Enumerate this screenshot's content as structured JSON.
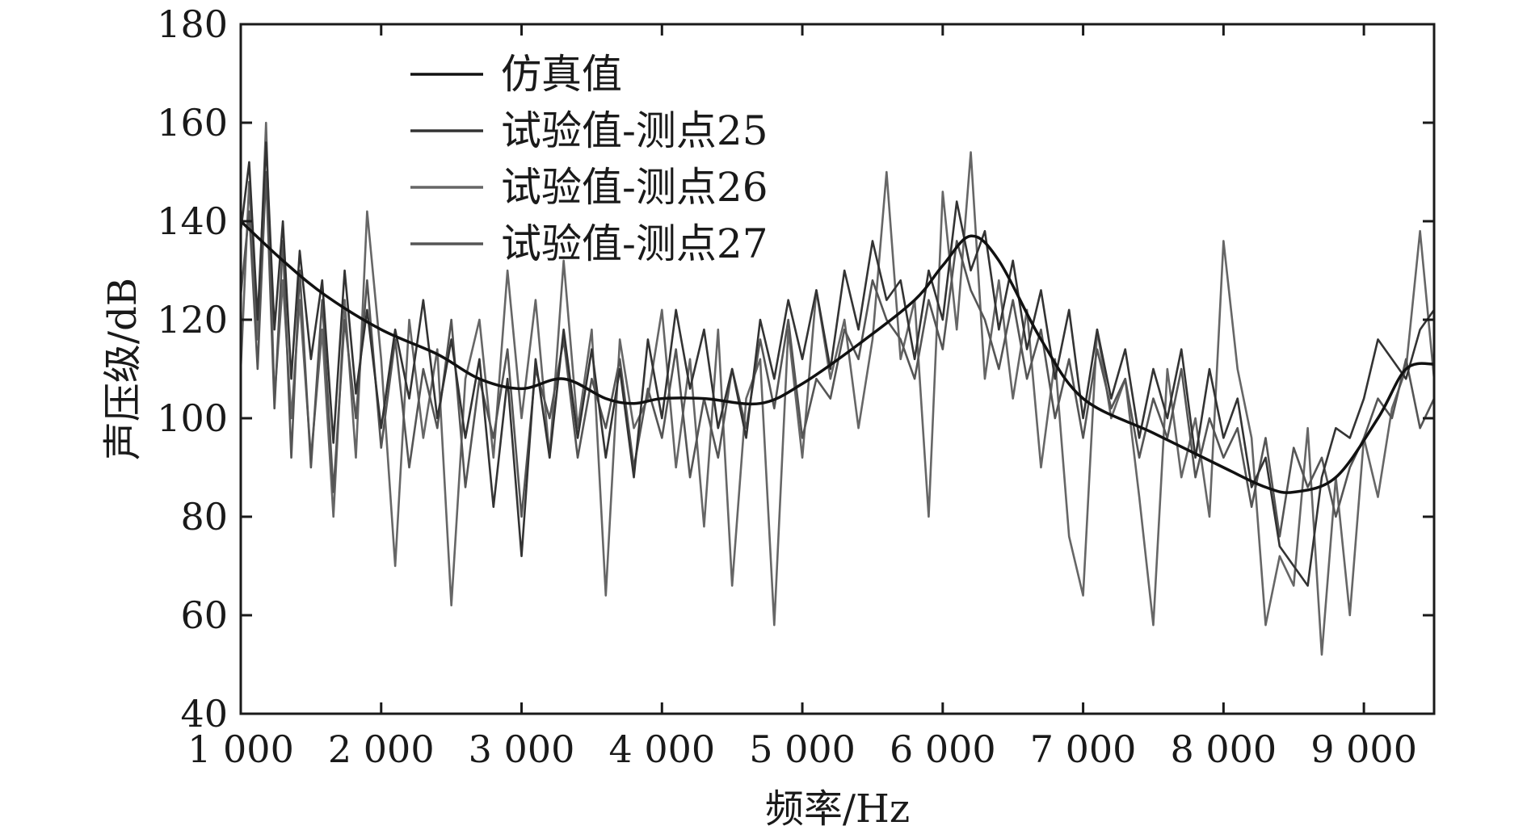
{
  "chart_data": {
    "type": "line",
    "title": "",
    "xlabel": "频率/Hz",
    "ylabel": "声压级/dB",
    "xlim": [
      1000,
      9500
    ],
    "ylim": [
      40,
      180
    ],
    "x_ticks": [
      1000,
      2000,
      3000,
      4000,
      5000,
      6000,
      7000,
      8000,
      9000
    ],
    "x_tick_labels": [
      "1 000",
      "2 000",
      "3 000",
      "4 000",
      "5 000",
      "6 000",
      "7 000",
      "8 000",
      "9 000"
    ],
    "y_ticks": [
      40,
      60,
      80,
      100,
      120,
      140,
      160,
      180
    ],
    "y_tick_labels": [
      "40",
      "60",
      "80",
      "100",
      "120",
      "140",
      "160",
      "180"
    ],
    "grid": false,
    "legend_position": "top-left",
    "colors": {
      "sim": "#111111",
      "p25": "#333333",
      "p26": "#666666",
      "p27": "#555555",
      "axis": "#1a1a1a"
    },
    "series": [
      {
        "name": "仿真值",
        "smooth": true,
        "x": [
          1000,
          1300,
          1600,
          2000,
          2400,
          2700,
          3000,
          3300,
          3600,
          3800,
          4000,
          4300,
          4700,
          5000,
          5400,
          5800,
          6000,
          6200,
          6400,
          6700,
          7000,
          7500,
          8000,
          8300,
          8500,
          8800,
          9100,
          9300,
          9500
        ],
        "y": [
          140,
          132,
          125,
          118,
          113,
          108,
          106,
          108,
          104,
          103,
          104,
          104,
          103,
          107,
          115,
          124,
          131,
          137,
          132,
          116,
          104,
          97,
          90,
          86,
          85,
          88,
          100,
          110,
          111
        ]
      },
      {
        "name": "试验值-测点25",
        "smooth": false,
        "x": [
          1000,
          1060,
          1120,
          1180,
          1240,
          1300,
          1360,
          1420,
          1500,
          1580,
          1660,
          1740,
          1820,
          1900,
          2000,
          2100,
          2200,
          2300,
          2400,
          2500,
          2600,
          2700,
          2800,
          2900,
          3000,
          3100,
          3200,
          3300,
          3400,
          3500,
          3600,
          3700,
          3800,
          3900,
          4000,
          4100,
          4200,
          4300,
          4400,
          4500,
          4600,
          4700,
          4800,
          4900,
          5000,
          5100,
          5200,
          5300,
          5400,
          5500,
          5600,
          5700,
          5800,
          5900,
          6000,
          6100,
          6200,
          6300,
          6400,
          6500,
          6600,
          6700,
          6800,
          6900,
          7000,
          7100,
          7200,
          7300,
          7400,
          7500,
          7600,
          7700,
          7800,
          7900,
          8000,
          8100,
          8200,
          8300,
          8400,
          8500,
          8600,
          8700,
          8800,
          8900,
          9000,
          9100,
          9200,
          9300,
          9400,
          9500
        ],
        "y": [
          138,
          152,
          120,
          156,
          118,
          140,
          108,
          134,
          112,
          128,
          95,
          130,
          105,
          122,
          98,
          118,
          104,
          124,
          100,
          116,
          96,
          112,
          82,
          108,
          72,
          112,
          92,
          118,
          96,
          114,
          92,
          110,
          88,
          116,
          100,
          122,
          106,
          118,
          98,
          110,
          96,
          120,
          108,
          124,
          112,
          126,
          110,
          130,
          118,
          136,
          124,
          128,
          112,
          130,
          120,
          144,
          130,
          138,
          118,
          132,
          114,
          126,
          108,
          122,
          100,
          118,
          104,
          114,
          96,
          110,
          100,
          114,
          92,
          110,
          96,
          104,
          86,
          92,
          74,
          70,
          66,
          88,
          98,
          96,
          104,
          116,
          112,
          108,
          118,
          122
        ]
      },
      {
        "name": "试验值-测点26",
        "smooth": false,
        "x": [
          1000,
          1060,
          1120,
          1180,
          1240,
          1300,
          1360,
          1420,
          1500,
          1580,
          1660,
          1740,
          1820,
          1900,
          2000,
          2100,
          2200,
          2300,
          2400,
          2500,
          2600,
          2700,
          2800,
          2900,
          3000,
          3100,
          3200,
          3300,
          3400,
          3500,
          3600,
          3700,
          3800,
          3900,
          4000,
          4100,
          4200,
          4300,
          4400,
          4500,
          4600,
          4700,
          4800,
          4900,
          5000,
          5100,
          5200,
          5300,
          5400,
          5500,
          5600,
          5700,
          5800,
          5900,
          6000,
          6100,
          6200,
          6300,
          6400,
          6500,
          6600,
          6700,
          6800,
          6900,
          7000,
          7100,
          7200,
          7300,
          7400,
          7500,
          7600,
          7700,
          7800,
          7900,
          8000,
          8100,
          8200,
          8300,
          8400,
          8500,
          8600,
          8700,
          8800,
          8900,
          9000,
          9100,
          9200,
          9300,
          9400,
          9500
        ],
        "y": [
          110,
          148,
          116,
          160,
          104,
          128,
          100,
          124,
          92,
          118,
          80,
          124,
          92,
          142,
          112,
          70,
          120,
          96,
          114,
          62,
          108,
          120,
          92,
          130,
          100,
          124,
          92,
          132,
          98,
          118,
          64,
          116,
          98,
          104,
          122,
          90,
          112,
          78,
          118,
          66,
          104,
          112,
          58,
          118,
          92,
          126,
          108,
          120,
          98,
          116,
          150,
          112,
          124,
          80,
          146,
          118,
          154,
          108,
          128,
          104,
          122,
          90,
          112,
          76,
          64,
          118,
          100,
          108,
          84,
          58,
          110,
          88,
          100,
          80,
          136,
          110,
          96,
          58,
          72,
          66,
          98,
          52,
          88,
          60,
          96,
          84,
          102,
          110,
          138,
          108
        ]
      },
      {
        "name": "试验值-测点27",
        "smooth": false,
        "x": [
          1000,
          1060,
          1120,
          1180,
          1240,
          1300,
          1360,
          1420,
          1500,
          1580,
          1660,
          1740,
          1820,
          1900,
          2000,
          2100,
          2200,
          2300,
          2400,
          2500,
          2600,
          2700,
          2800,
          2900,
          3000,
          3100,
          3200,
          3300,
          3400,
          3500,
          3600,
          3700,
          3800,
          3900,
          4000,
          4100,
          4200,
          4300,
          4400,
          4500,
          4600,
          4700,
          4800,
          4900,
          5000,
          5100,
          5200,
          5300,
          5400,
          5500,
          5600,
          5700,
          5800,
          5900,
          6000,
          6100,
          6200,
          6300,
          6400,
          6500,
          6600,
          6700,
          6800,
          6900,
          7000,
          7100,
          7200,
          7300,
          7400,
          7500,
          7600,
          7700,
          7800,
          7900,
          8000,
          8100,
          8200,
          8300,
          8400,
          8500,
          8600,
          8700,
          8800,
          8900,
          9000,
          9100,
          9200,
          9300,
          9400,
          9500
        ],
        "y": [
          125,
          142,
          110,
          150,
          102,
          136,
          92,
          130,
          90,
          124,
          85,
          120,
          100,
          128,
          94,
          116,
          90,
          110,
          98,
          120,
          86,
          108,
          96,
          114,
          80,
          110,
          100,
          116,
          92,
          108,
          98,
          112,
          90,
          106,
          96,
          114,
          88,
          104,
          92,
          110,
          98,
          116,
          102,
          120,
          96,
          108,
          104,
          118,
          112,
          128,
          120,
          116,
          108,
          124,
          114,
          136,
          126,
          120,
          110,
          124,
          108,
          118,
          100,
          112,
          96,
          114,
          102,
          108,
          92,
          104,
          96,
          110,
          88,
          100,
          92,
          98,
          82,
          96,
          76,
          94,
          86,
          92,
          80,
          90,
          96,
          104,
          100,
          112,
          98,
          104
        ]
      }
    ]
  }
}
